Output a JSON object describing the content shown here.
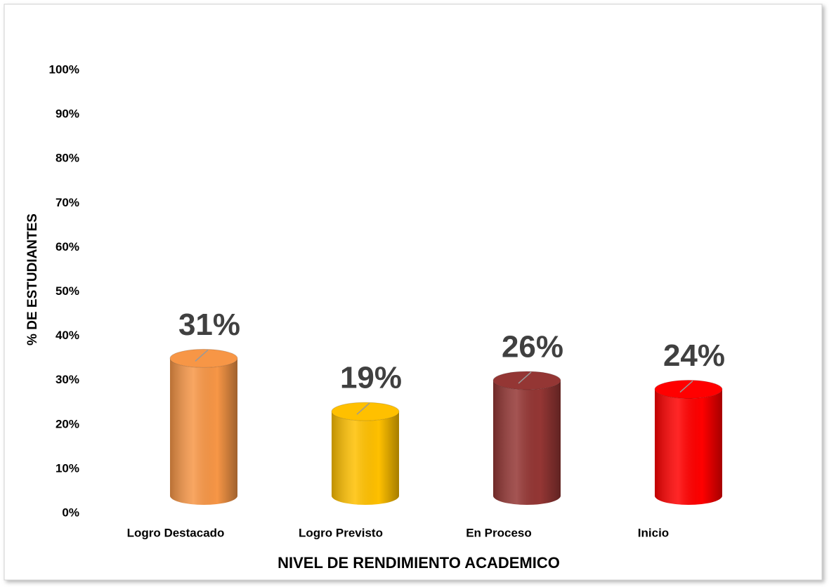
{
  "chart_data": {
    "type": "bar",
    "x_label": "NIVEL DE RENDIMIENTO ACADEMICO",
    "y_label": "% DE  ESTUDIANTES",
    "categories": [
      "Logro Destacado",
      "Logro Previsto",
      "En Proceso",
      "Inicio"
    ],
    "values": [
      31,
      19,
      26,
      24
    ],
    "value_labels": [
      "31%",
      "19%",
      "26%",
      "24%"
    ],
    "colors": [
      "#f79646",
      "#ffc000",
      "#943634",
      "#ff0000"
    ],
    "ylim": [
      0,
      100
    ],
    "yticks": [
      {
        "value": 0,
        "label": "0%"
      },
      {
        "value": 10,
        "label": "10%"
      },
      {
        "value": 20,
        "label": "20%"
      },
      {
        "value": 30,
        "label": "30%"
      },
      {
        "value": 40,
        "label": "40%"
      },
      {
        "value": 50,
        "label": "50%"
      },
      {
        "value": 60,
        "label": "60%"
      },
      {
        "value": 70,
        "label": "70%"
      },
      {
        "value": 80,
        "label": "80%"
      },
      {
        "value": 90,
        "label": "90%"
      },
      {
        "value": 100,
        "label": "100%"
      }
    ],
    "grid": false
  }
}
